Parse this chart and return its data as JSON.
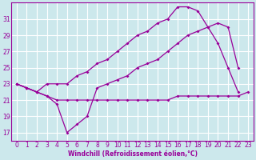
{
  "line_flat_x": [
    0,
    1,
    2,
    3,
    4,
    5,
    6,
    7,
    8,
    9,
    10,
    11,
    12,
    13,
    14,
    15,
    16,
    17,
    18,
    19,
    20,
    21,
    22,
    23
  ],
  "line_flat_y": [
    23,
    22.5,
    22,
    21.5,
    21,
    21,
    21,
    21,
    21,
    21,
    21,
    21,
    21,
    21,
    21,
    21,
    21.5,
    21.5,
    21.5,
    21.5,
    21.5,
    21.5,
    21.5,
    22
  ],
  "line_top_x": [
    0,
    1,
    2,
    3,
    4,
    5,
    6,
    7,
    8,
    9,
    10,
    11,
    12,
    13,
    14,
    15,
    16,
    17,
    18,
    19,
    20,
    21,
    22
  ],
  "line_top_y": [
    23,
    22.5,
    22,
    23,
    23,
    23,
    24,
    24.5,
    25.5,
    26,
    27,
    28,
    29,
    29.5,
    30.5,
    31,
    32.5,
    32.5,
    32,
    30,
    28,
    25,
    22
  ],
  "line_dip_x": [
    0,
    1,
    2,
    3,
    4,
    5,
    6,
    7,
    8,
    9,
    10,
    11,
    12,
    13,
    14,
    15,
    16,
    17,
    18,
    19,
    20,
    21,
    22
  ],
  "line_dip_y": [
    23,
    22.5,
    22,
    21.5,
    20.5,
    17,
    18,
    19,
    22.5,
    23,
    23.5,
    24,
    25,
    25.5,
    26,
    27,
    28,
    29,
    29.5,
    30,
    30.5,
    30,
    25
  ],
  "color": "#990099",
  "bg_color": "#cce8ec",
  "grid_color": "#ffffff",
  "xlabel": "Windchill (Refroidissement éolien,°C)",
  "ylim": [
    16.0,
    33.0
  ],
  "xlim": [
    -0.5,
    23.5
  ],
  "yticks": [
    17,
    19,
    21,
    23,
    25,
    27,
    29,
    31
  ],
  "xticks": [
    0,
    1,
    2,
    3,
    4,
    5,
    6,
    7,
    8,
    9,
    10,
    11,
    12,
    13,
    14,
    15,
    16,
    17,
    18,
    19,
    20,
    21,
    22,
    23
  ],
  "tick_fontsize": 5.5,
  "xlabel_fontsize": 5.5,
  "marker_size": 2.0,
  "linewidth": 0.9
}
